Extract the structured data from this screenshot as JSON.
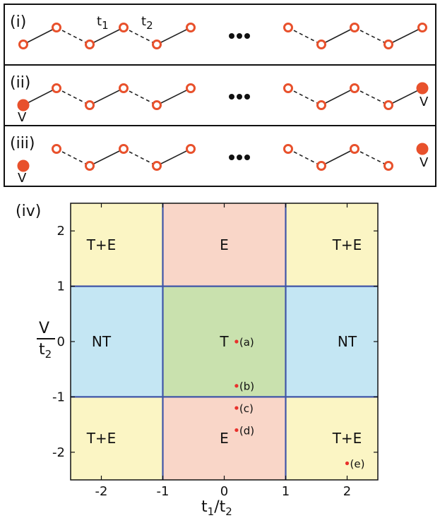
{
  "colors": {
    "site_stroke": "#e8512c",
    "site_fill_open": "#ffffff",
    "site_fill_solid": "#e8512c",
    "bond": "#222222",
    "region_TE": "#fbf5c4",
    "region_E": "#f9d6c8",
    "region_NT": "#c4e6f3",
    "region_T": "#c9e1ae",
    "boundary": "#3f55a8",
    "point": "#e8312c"
  },
  "panels": {
    "i": {
      "label": "(i)",
      "t1_label": "t",
      "t1_sub": "1",
      "t2_label": "t",
      "t2_sub": "2"
    },
    "ii": {
      "label": "(ii)",
      "left_potential": "V",
      "right_potential": "V"
    },
    "iii": {
      "label": "(iii)",
      "left_potential": "V",
      "right_potential": "V"
    },
    "iv": {
      "label": "(iv)"
    }
  },
  "ellipsis_icon": "ellipsis-icon",
  "chart_data": {
    "type": "heatmap",
    "x": {
      "label": "t",
      "label_sub_1": "1",
      "label_slash": "/t",
      "label_sub_2": "2",
      "lim": [
        -2.5,
        2.5
      ],
      "ticks": [
        -2,
        -1,
        0,
        1,
        2
      ]
    },
    "y": {
      "label_num": "V",
      "label_den": "t",
      "label_den_sub": "2",
      "lim": [
        -2.5,
        2.5
      ],
      "ticks": [
        2,
        1,
        0,
        -1,
        -2
      ]
    },
    "regions": [
      {
        "name": "T+E",
        "x": [
          -2.5,
          -1
        ],
        "y": [
          1,
          2.5
        ],
        "color": "#fbf5c4",
        "label_at": [
          -2,
          1.75
        ]
      },
      {
        "name": "E",
        "x": [
          -1,
          1
        ],
        "y": [
          1,
          2.5
        ],
        "color": "#f9d6c8",
        "label_at": [
          0,
          1.75
        ]
      },
      {
        "name": "T+E",
        "x": [
          1,
          2.5
        ],
        "y": [
          1,
          2.5
        ],
        "color": "#fbf5c4",
        "label_at": [
          2,
          1.75
        ]
      },
      {
        "name": "NT",
        "x": [
          -2.5,
          -1
        ],
        "y": [
          -1,
          1
        ],
        "color": "#c4e6f3",
        "label_at": [
          -2,
          0
        ]
      },
      {
        "name": "T",
        "x": [
          -1,
          1
        ],
        "y": [
          -1,
          1
        ],
        "color": "#c9e1ae",
        "label_at": [
          0,
          0
        ]
      },
      {
        "name": "NT",
        "x": [
          1,
          2.5
        ],
        "y": [
          -1,
          1
        ],
        "color": "#c4e6f3",
        "label_at": [
          2,
          0
        ]
      },
      {
        "name": "T+E",
        "x": [
          -2.5,
          -1
        ],
        "y": [
          -2.5,
          -1
        ],
        "color": "#fbf5c4",
        "label_at": [
          -2,
          -1.75
        ]
      },
      {
        "name": "E",
        "x": [
          -1,
          1
        ],
        "y": [
          -2.5,
          -1
        ],
        "color": "#f9d6c8",
        "label_at": [
          0,
          -1.75
        ]
      },
      {
        "name": "T+E",
        "x": [
          1,
          2.5
        ],
        "y": [
          -2.5,
          -1
        ],
        "color": "#fbf5c4",
        "label_at": [
          2,
          -1.75
        ]
      }
    ],
    "boundaries": {
      "x": [
        -1,
        1
      ],
      "y": [
        -1,
        1
      ]
    },
    "points": [
      {
        "label": "(a)",
        "x": 0.2,
        "y": 0
      },
      {
        "label": "(b)",
        "x": 0.2,
        "y": -0.8
      },
      {
        "label": "(c)",
        "x": 0.2,
        "y": -1.2
      },
      {
        "label": "(d)",
        "x": 0.2,
        "y": -1.6
      },
      {
        "label": "(e)",
        "x": 2.0,
        "y": -2.2
      }
    ]
  }
}
